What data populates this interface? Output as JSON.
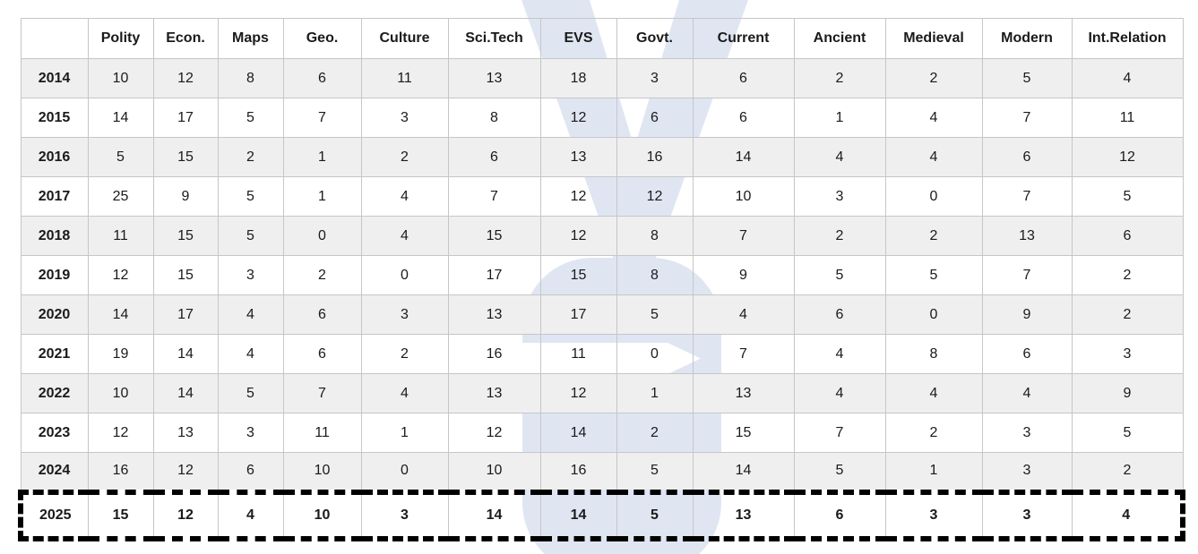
{
  "chart_data": {
    "type": "table",
    "columns": [
      "",
      "Polity",
      "Econ.",
      "Maps",
      "Geo.",
      "Culture",
      "Sci.Tech",
      "EVS",
      "Govt.",
      "Current",
      "Ancient",
      "Medieval",
      "Modern",
      "Int.Relation"
    ],
    "rows": [
      {
        "year": "2014",
        "values": [
          10,
          12,
          8,
          6,
          11,
          13,
          18,
          3,
          6,
          2,
          2,
          5,
          4
        ],
        "highlighted": false
      },
      {
        "year": "2015",
        "values": [
          14,
          17,
          5,
          7,
          3,
          8,
          12,
          6,
          6,
          1,
          4,
          7,
          11
        ],
        "highlighted": false
      },
      {
        "year": "2016",
        "values": [
          5,
          15,
          2,
          1,
          2,
          6,
          13,
          16,
          14,
          4,
          4,
          6,
          12
        ],
        "highlighted": false
      },
      {
        "year": "2017",
        "values": [
          25,
          9,
          5,
          1,
          4,
          7,
          12,
          12,
          10,
          3,
          0,
          7,
          5
        ],
        "highlighted": false
      },
      {
        "year": "2018",
        "values": [
          11,
          15,
          5,
          0,
          4,
          15,
          12,
          8,
          7,
          2,
          2,
          13,
          6
        ],
        "highlighted": false
      },
      {
        "year": "2019",
        "values": [
          12,
          15,
          3,
          2,
          0,
          17,
          15,
          8,
          9,
          5,
          5,
          7,
          2
        ],
        "highlighted": false
      },
      {
        "year": "2020",
        "values": [
          14,
          17,
          4,
          6,
          3,
          13,
          17,
          5,
          4,
          6,
          0,
          9,
          2
        ],
        "highlighted": false
      },
      {
        "year": "2021",
        "values": [
          19,
          14,
          4,
          6,
          2,
          16,
          11,
          0,
          7,
          4,
          8,
          6,
          3
        ],
        "highlighted": false
      },
      {
        "year": "2022",
        "values": [
          10,
          14,
          5,
          7,
          4,
          13,
          12,
          1,
          13,
          4,
          4,
          4,
          9
        ],
        "highlighted": false
      },
      {
        "year": "2023",
        "values": [
          12,
          13,
          3,
          11,
          1,
          12,
          14,
          2,
          15,
          7,
          2,
          3,
          5
        ],
        "highlighted": false
      },
      {
        "year": "2024",
        "values": [
          16,
          12,
          6,
          10,
          0,
          10,
          16,
          5,
          14,
          5,
          1,
          3,
          2
        ],
        "highlighted": false
      },
      {
        "year": "2025",
        "values": [
          15,
          12,
          4,
          10,
          3,
          14,
          14,
          5,
          13,
          6,
          3,
          3,
          4
        ],
        "highlighted": true
      }
    ]
  },
  "colors": {
    "stripe": "#efefef",
    "grid_line": "#c6c6c9",
    "text": "#1a1a1a",
    "watermark": "#dfe6f2",
    "highlight_border": "#000000"
  }
}
